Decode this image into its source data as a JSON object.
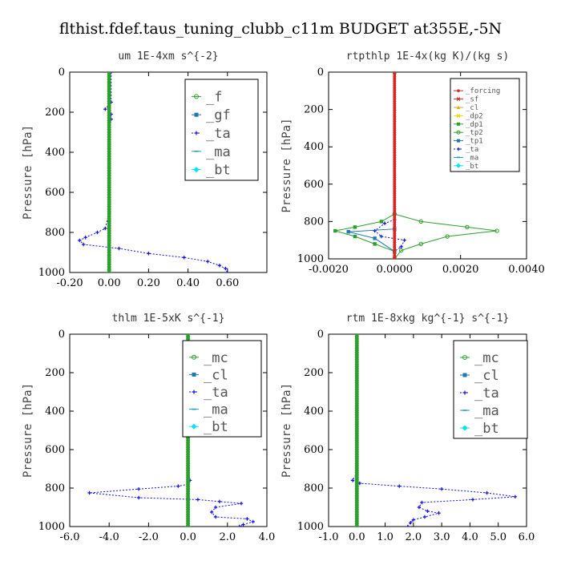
{
  "figure_title": "flthist.fdef.taus_tuning_clubb_c11m  BUDGET at355E,-5N",
  "chart_data": [
    {
      "type": "line",
      "title": "um   1E-4xm  s^{-2}",
      "ylabel": "Pressure [hPa]",
      "xlim": [
        -0.2,
        0.8
      ],
      "ylim": [
        1000,
        0
      ],
      "xticks": [
        "-0.20",
        "0.00",
        "0.20",
        "0.40",
        "0.60"
      ],
      "xtick_values": [
        -0.2,
        0.0,
        0.2,
        0.4,
        0.6
      ],
      "yticks": [
        "0",
        "200",
        "400",
        "600",
        "800",
        "1000"
      ],
      "ytick_values": [
        0,
        200,
        400,
        600,
        800,
        1000
      ],
      "legend_position": "top-right",
      "legend_size": "large",
      "series": [
        {
          "name": "_f",
          "color": "#2ca02c",
          "marker": "circle",
          "dashed": false,
          "points": [
            [
              0,
              0
            ],
            [
              0,
              100
            ],
            [
              0,
              200
            ],
            [
              0,
              300
            ],
            [
              0,
              400
            ],
            [
              0,
              500
            ],
            [
              0,
              600
            ],
            [
              0,
              700
            ],
            [
              0,
              800
            ],
            [
              0,
              900
            ],
            [
              0,
              1000
            ]
          ]
        },
        {
          "name": "_gf",
          "color": "#1f77b4",
          "marker": "square",
          "dashed": false,
          "points": [
            [
              0,
              180
            ],
            [
              0,
              1000
            ]
          ]
        },
        {
          "name": "_ta",
          "color": "#1010e0",
          "marker": "plus",
          "dashed": true,
          "points": [
            [
              0.01,
              0
            ],
            [
              0.01,
              150
            ],
            [
              -0.02,
              185
            ],
            [
              0.0,
              195
            ],
            [
              0.01,
              210
            ],
            [
              0.01,
              235
            ],
            [
              0.0,
              300
            ],
            [
              0.0,
              700
            ],
            [
              -0.02,
              780
            ],
            [
              -0.06,
              800
            ],
            [
              -0.12,
              825
            ],
            [
              -0.15,
              840
            ],
            [
              -0.13,
              860
            ],
            [
              0.05,
              880
            ],
            [
              0.2,
              905
            ],
            [
              0.38,
              925
            ],
            [
              0.5,
              945
            ],
            [
              0.56,
              965
            ],
            [
              0.59,
              980
            ],
            [
              0.6,
              1000
            ]
          ]
        },
        {
          "name": "_ma",
          "color": "#17a2b8",
          "marker": "dash",
          "dashed": false,
          "points": [
            [
              0,
              0
            ],
            [
              0,
              1000
            ]
          ]
        },
        {
          "name": "_bt",
          "color": "#00e5ff",
          "marker": "diamond",
          "dashed": false,
          "points": [
            [
              0,
              0
            ],
            [
              0,
              1000
            ]
          ]
        }
      ]
    },
    {
      "type": "line",
      "title": "rtpthlp  1E-4x(kg K)/(kg s)",
      "ylabel": "Pressure [hPa]",
      "xlim": [
        -0.002,
        0.004
      ],
      "ylim": [
        1000,
        0
      ],
      "xticks": [
        "-0.0020",
        "0.0000",
        "0.0020",
        "0.0040"
      ],
      "xtick_values": [
        -0.002,
        0.0,
        0.002,
        0.004
      ],
      "yticks": [
        "0",
        "200",
        "400",
        "600",
        "800",
        "1000"
      ],
      "ytick_values": [
        0,
        200,
        400,
        600,
        800,
        1000
      ],
      "legend_position": "top-right",
      "legend_size": "small",
      "series": [
        {
          "name": "_forcing",
          "color": "#d62728",
          "marker": "star",
          "dashed": false,
          "points": [
            [
              0,
              0
            ],
            [
              0,
              100
            ],
            [
              0,
              200
            ],
            [
              0,
              300
            ],
            [
              0,
              400
            ],
            [
              0,
              500
            ],
            [
              0,
              600
            ],
            [
              0,
              700
            ],
            [
              0,
              800
            ],
            [
              0,
              900
            ],
            [
              0,
              1000
            ]
          ]
        },
        {
          "name": "_sf",
          "color": "#d62728",
          "marker": "cross",
          "dashed": false,
          "points": [
            [
              0,
              0
            ],
            [
              0,
              1000
            ]
          ]
        },
        {
          "name": "_cl",
          "color": "#e6a800",
          "marker": "triangle",
          "dashed": false,
          "points": [
            [
              0,
              0
            ],
            [
              0,
              1000
            ]
          ]
        },
        {
          "name": "_dp2",
          "color": "#e8d800",
          "marker": "cross",
          "dashed": false,
          "points": [
            [
              0,
              0
            ],
            [
              0,
              1000
            ]
          ]
        },
        {
          "name": "_dp1",
          "color": "#2ca02c",
          "marker": "square",
          "dashed": false,
          "points": [
            [
              0,
              0
            ],
            [
              0,
              760
            ],
            [
              -0.0004,
              800
            ],
            [
              -0.0012,
              830
            ],
            [
              -0.0018,
              850
            ],
            [
              -0.0012,
              880
            ],
            [
              -0.0006,
              920
            ],
            [
              0.0,
              960
            ],
            [
              0,
              1000
            ]
          ]
        },
        {
          "name": "_tp2",
          "color": "#2ca02c",
          "marker": "circle",
          "dashed": false,
          "points": [
            [
              0,
              0
            ],
            [
              0,
              760
            ],
            [
              0.0008,
              800
            ],
            [
              0.0022,
              830
            ],
            [
              0.0031,
              850
            ],
            [
              0.0016,
              880
            ],
            [
              0.0008,
              920
            ],
            [
              0.0002,
              955
            ],
            [
              0,
              1000
            ]
          ]
        },
        {
          "name": "_tp1",
          "color": "#1f77b4",
          "marker": "square",
          "dashed": false,
          "points": [
            [
              0,
              0
            ],
            [
              0,
              840
            ],
            [
              -0.0014,
              855
            ],
            [
              -0.0006,
              890
            ],
            [
              0.0,
              960
            ],
            [
              0,
              1000
            ]
          ]
        },
        {
          "name": "_ta",
          "color": "#1010e0",
          "marker": "plus",
          "dashed": true,
          "points": [
            [
              0,
              0
            ],
            [
              0,
              790
            ],
            [
              -0.0003,
              810
            ],
            [
              -0.0006,
              850
            ],
            [
              -0.0004,
              880
            ],
            [
              0.0003,
              900
            ],
            [
              0.0002,
              935
            ],
            [
              0,
              960
            ],
            [
              0,
              1000
            ]
          ]
        },
        {
          "name": "_ma",
          "color": "#17a2b8",
          "marker": "dash",
          "dashed": false,
          "points": [
            [
              0,
              0
            ],
            [
              0,
              1000
            ]
          ]
        },
        {
          "name": "_bt",
          "color": "#00e5ff",
          "marker": "diamond",
          "dashed": false,
          "points": [
            [
              0,
              0
            ],
            [
              0,
              1000
            ]
          ]
        }
      ]
    },
    {
      "type": "line",
      "title": "thlm  1E-5xK  s^{-1}",
      "ylabel": "Pressure [hPa]",
      "xlim": [
        -6.0,
        4.0
      ],
      "ylim": [
        1000,
        0
      ],
      "xticks": [
        "-6.0",
        "-4.0",
        "-2.0",
        "0.0",
        "2.0",
        "4.0"
      ],
      "xtick_values": [
        -6,
        -4,
        -2,
        0,
        2,
        4
      ],
      "yticks": [
        "0",
        "200",
        "400",
        "600",
        "800",
        "1000"
      ],
      "ytick_values": [
        0,
        200,
        400,
        600,
        800,
        1000
      ],
      "legend_position": "top-right",
      "legend_size": "large",
      "series": [
        {
          "name": "_mc",
          "color": "#2ca02c",
          "marker": "circle",
          "dashed": false,
          "points": [
            [
              0,
              0
            ],
            [
              0,
              100
            ],
            [
              0,
              200
            ],
            [
              0,
              300
            ],
            [
              0,
              400
            ],
            [
              0,
              500
            ],
            [
              0,
              600
            ],
            [
              0,
              700
            ],
            [
              0,
              800
            ],
            [
              0,
              900
            ],
            [
              0,
              1000
            ]
          ]
        },
        {
          "name": "_cl",
          "color": "#1f77b4",
          "marker": "square",
          "dashed": false,
          "points": [
            [
              0,
              0
            ],
            [
              0,
              1000
            ]
          ]
        },
        {
          "name": "_ta",
          "color": "#1010e0",
          "marker": "plus",
          "dashed": true,
          "points": [
            [
              0,
              0
            ],
            [
              0,
              700
            ],
            [
              0.1,
              760
            ],
            [
              0,
              780
            ],
            [
              -0.5,
              790
            ],
            [
              -2.5,
              805
            ],
            [
              -5.0,
              825
            ],
            [
              -2.5,
              850
            ],
            [
              0.5,
              860
            ],
            [
              1.6,
              870
            ],
            [
              2.7,
              880
            ],
            [
              1.4,
              900
            ],
            [
              1.2,
              925
            ],
            [
              1.4,
              950
            ],
            [
              3.0,
              960
            ],
            [
              3.3,
              975
            ],
            [
              2.8,
              990
            ],
            [
              2.6,
              1000
            ]
          ]
        },
        {
          "name": "_ma",
          "color": "#17a2b8",
          "marker": "dash",
          "dashed": false,
          "points": [
            [
              0,
              0
            ],
            [
              0,
              1000
            ]
          ]
        },
        {
          "name": "_bt",
          "color": "#00e5ff",
          "marker": "diamond",
          "dashed": false,
          "points": [
            [
              0,
              0
            ],
            [
              0,
              1000
            ]
          ]
        }
      ]
    },
    {
      "type": "line",
      "title": "rtm  1E-8xkg  kg^{-1} s^{-1}",
      "ylabel": "Pressure [hPa]",
      "xlim": [
        -1.0,
        6.0
      ],
      "ylim": [
        1000,
        0
      ],
      "xticks": [
        "-1.0",
        "0.0",
        "1.0",
        "2.0",
        "3.0",
        "4.0",
        "5.0",
        "6.0"
      ],
      "xtick_values": [
        -1,
        0,
        1,
        2,
        3,
        4,
        5,
        6
      ],
      "yticks": [
        "0",
        "200",
        "400",
        "600",
        "800",
        "1000"
      ],
      "ytick_values": [
        0,
        200,
        400,
        600,
        800,
        1000
      ],
      "legend_position": "top-right",
      "legend_size": "large",
      "series": [
        {
          "name": "_mc",
          "color": "#2ca02c",
          "marker": "circle",
          "dashed": false,
          "points": [
            [
              0,
              0
            ],
            [
              0,
              100
            ],
            [
              0,
              200
            ],
            [
              0,
              300
            ],
            [
              0,
              400
            ],
            [
              0,
              500
            ],
            [
              0,
              600
            ],
            [
              0,
              700
            ],
            [
              0,
              800
            ],
            [
              0,
              900
            ],
            [
              0,
              1000
            ]
          ]
        },
        {
          "name": "_cl",
          "color": "#1f77b4",
          "marker": "square",
          "dashed": false,
          "points": [
            [
              0,
              0
            ],
            [
              0,
              1000
            ]
          ]
        },
        {
          "name": "_ta",
          "color": "#1010e0",
          "marker": "plus",
          "dashed": true,
          "points": [
            [
              0,
              0
            ],
            [
              0,
              720
            ],
            [
              -0.15,
              760
            ],
            [
              0.1,
              775
            ],
            [
              1.5,
              790
            ],
            [
              3.0,
              805
            ],
            [
              4.6,
              825
            ],
            [
              5.6,
              845
            ],
            [
              4.1,
              860
            ],
            [
              2.3,
              875
            ],
            [
              2.2,
              900
            ],
            [
              2.5,
              920
            ],
            [
              2.9,
              930
            ],
            [
              2.4,
              950
            ],
            [
              2.0,
              965
            ],
            [
              1.9,
              980
            ],
            [
              1.8,
              1000
            ]
          ]
        },
        {
          "name": "_ma",
          "color": "#17a2b8",
          "marker": "dash",
          "dashed": false,
          "points": [
            [
              0,
              0
            ],
            [
              0,
              1000
            ]
          ]
        },
        {
          "name": "_bt",
          "color": "#00e5ff",
          "marker": "diamond",
          "dashed": false,
          "points": [
            [
              0,
              0
            ],
            [
              0,
              1000
            ]
          ]
        }
      ]
    }
  ]
}
